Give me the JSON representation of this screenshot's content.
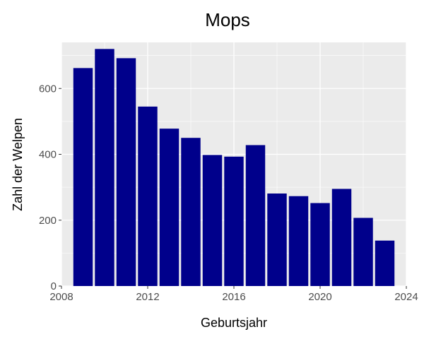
{
  "chart_data": {
    "type": "bar",
    "title": "Mops",
    "xlabel": "Geburtsjahr",
    "ylabel": "Zahl der Welpen",
    "x": [
      2009,
      2010,
      2011,
      2012,
      2013,
      2014,
      2015,
      2016,
      2017,
      2018,
      2019,
      2020,
      2021,
      2022,
      2023
    ],
    "values": [
      662,
      720,
      692,
      545,
      478,
      450,
      398,
      393,
      428,
      281,
      273,
      252,
      295,
      207,
      138
    ],
    "xlim": [
      2008,
      2024
    ],
    "ylim": [
      0,
      740
    ],
    "xticks": [
      2008,
      2012,
      2016,
      2020,
      2024
    ],
    "yticks": [
      0,
      200,
      400,
      600
    ],
    "grid": true,
    "legend": "none",
    "colors": {
      "bar": "#00008B",
      "panel": "#EBEBEB",
      "grid": "#FFFFFF"
    }
  }
}
